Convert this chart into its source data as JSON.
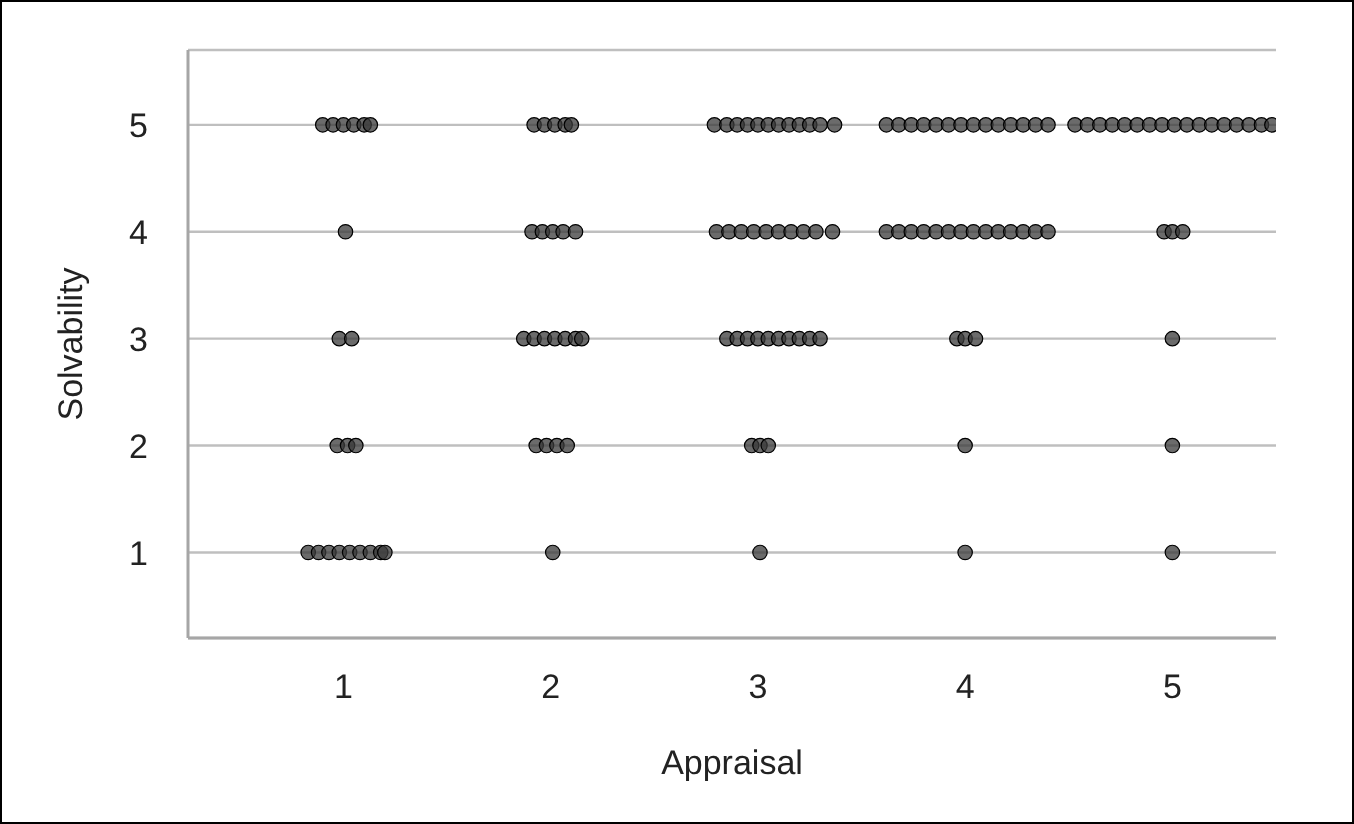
{
  "chart_data": {
    "type": "scatter",
    "xlabel": "Appraisal",
    "ylabel": "Solvability",
    "xlim": [
      0.25,
      5.5
    ],
    "ylim": [
      0.2,
      5.7
    ],
    "xticks": [
      1,
      2,
      3,
      4,
      5
    ],
    "yticks": [
      1,
      2,
      3,
      4,
      5
    ],
    "grid": "y",
    "marker": "circle",
    "series": [
      {
        "color": "#3a3a3a",
        "x": [
          0.9,
          0.95,
          1.0,
          1.05,
          1.1,
          1.13,
          1.92,
          1.97,
          2.02,
          2.07,
          2.1,
          2.79,
          2.85,
          2.9,
          2.95,
          3.0,
          3.05,
          3.1,
          3.15,
          3.2,
          3.25,
          3.3,
          3.37,
          3.62,
          3.68,
          3.74,
          3.8,
          3.86,
          3.92,
          3.98,
          4.04,
          4.1,
          4.16,
          4.22,
          4.28,
          4.34,
          4.4,
          4.53,
          4.59,
          4.65,
          4.71,
          4.77,
          4.83,
          4.89,
          4.95,
          5.01,
          5.07,
          5.13,
          5.19,
          5.25,
          5.31,
          5.37,
          5.43,
          5.48,
          1.01,
          1.91,
          1.96,
          2.01,
          2.06,
          2.12,
          2.8,
          2.86,
          2.92,
          2.98,
          3.04,
          3.1,
          3.16,
          3.22,
          3.28,
          3.36,
          3.62,
          3.68,
          3.74,
          3.8,
          3.86,
          3.92,
          3.98,
          4.04,
          4.1,
          4.16,
          4.22,
          4.28,
          4.34,
          4.4,
          4.96,
          5.0,
          5.05,
          0.98,
          1.04,
          1.87,
          1.92,
          1.97,
          2.02,
          2.07,
          2.12,
          2.15,
          2.85,
          2.9,
          2.95,
          3.0,
          3.05,
          3.1,
          3.15,
          3.2,
          3.25,
          3.3,
          3.96,
          4.0,
          4.05,
          5.0,
          0.97,
          1.02,
          1.06,
          1.93,
          1.98,
          2.03,
          2.08,
          2.97,
          3.01,
          3.05,
          4.0,
          5.0,
          0.83,
          0.88,
          0.93,
          0.98,
          1.03,
          1.08,
          1.13,
          1.18,
          1.2,
          2.01,
          3.01,
          4.0,
          5.0
        ],
        "values": [
          5,
          5,
          5,
          5,
          5,
          5,
          5,
          5,
          5,
          5,
          5,
          5,
          5,
          5,
          5,
          5,
          5,
          5,
          5,
          5,
          5,
          5,
          5,
          5,
          5,
          5,
          5,
          5,
          5,
          5,
          5,
          5,
          5,
          5,
          5,
          5,
          5,
          5,
          5,
          5,
          5,
          5,
          5,
          5,
          5,
          5,
          5,
          5,
          5,
          5,
          5,
          5,
          5,
          5,
          4,
          4,
          4,
          4,
          4,
          4,
          4,
          4,
          4,
          4,
          4,
          4,
          4,
          4,
          4,
          4,
          4,
          4,
          4,
          4,
          4,
          4,
          4,
          4,
          4,
          4,
          4,
          4,
          4,
          4,
          4,
          4,
          4,
          3,
          3,
          3,
          3,
          3,
          3,
          3,
          3,
          3,
          3,
          3,
          3,
          3,
          3,
          3,
          3,
          3,
          3,
          3,
          3,
          3,
          3,
          3,
          2,
          2,
          2,
          2,
          2,
          2,
          2,
          2,
          2,
          2,
          2,
          2,
          1,
          1,
          1,
          1,
          1,
          1,
          1,
          1,
          1,
          1,
          1,
          1,
          1
        ]
      }
    ]
  }
}
